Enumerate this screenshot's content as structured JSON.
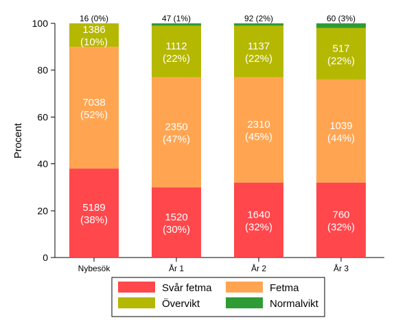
{
  "chart_data": {
    "type": "bar",
    "stacked": true,
    "orientation": "vertical",
    "ylabel": "Procent",
    "ylim": [
      0,
      100
    ],
    "yticks": [
      0,
      20,
      40,
      60,
      80,
      100
    ],
    "categories": [
      "Nybesök",
      "År 1",
      "År 2",
      "År 3"
    ],
    "series": [
      {
        "name": "Svår fetma",
        "color": "#ff474c",
        "percent": [
          38,
          30,
          32,
          32
        ],
        "counts": [
          "5189",
          "1520",
          "1640",
          "760"
        ],
        "labels": [
          "(38%)",
          "(30%)",
          "(32%)",
          "(32%)"
        ]
      },
      {
        "name": "Fetma",
        "color": "#ffa552",
        "percent": [
          52,
          47,
          45,
          44
        ],
        "counts": [
          "7038",
          "2350",
          "2310",
          "1039"
        ],
        "labels": [
          "(52%)",
          "(47%)",
          "(45%)",
          "(44%)"
        ]
      },
      {
        "name": "Övervikt",
        "color": "#b5b800",
        "percent": [
          10,
          22,
          22,
          22
        ],
        "counts": [
          "1386",
          "1112",
          "1137",
          "517"
        ],
        "labels": [
          "(10%)",
          "(22%)",
          "(22%)",
          "(22%)"
        ]
      },
      {
        "name": "Normalvikt",
        "color": "#2e9b34",
        "percent": [
          0,
          1,
          2,
          3
        ],
        "counts": [
          "16",
          "47",
          "92",
          "60"
        ],
        "labels": [
          "(0%)",
          "(1%)",
          "(2%)",
          "(3%)"
        ]
      }
    ],
    "top_labels": [
      "16 (0%)",
      "47 (1%)",
      "92 (2%)",
      "60 (3%)"
    ],
    "legend": {
      "position": "bottom",
      "columns": 2
    },
    "grid": false
  }
}
